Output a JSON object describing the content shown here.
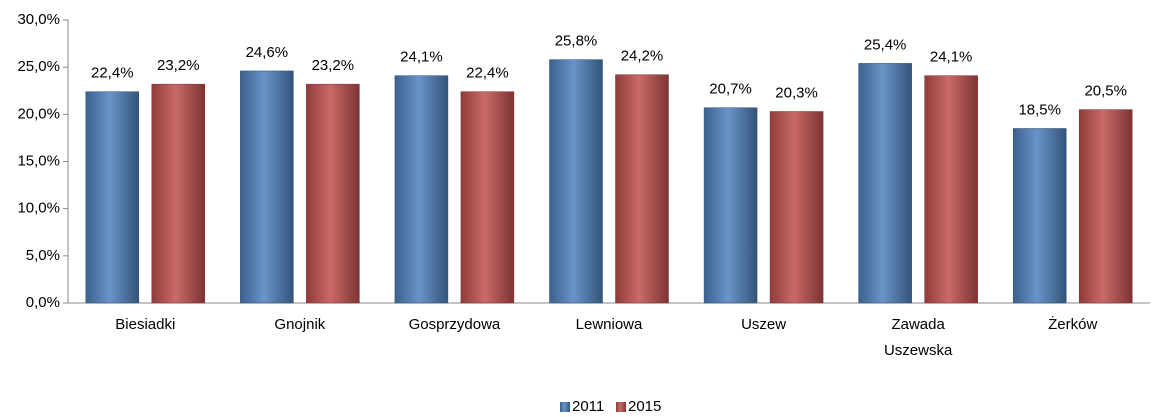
{
  "chart_data": {
    "type": "bar",
    "categories": [
      "Biesiadki",
      "Gnojnik",
      "Gosprzydowa",
      "Lewniowa",
      "Uszew",
      "Zawada Uszewska",
      "Żerków"
    ],
    "series": [
      {
        "name": "2011",
        "color": "#4f81bd",
        "values": [
          22.4,
          24.6,
          24.1,
          25.8,
          20.7,
          25.4,
          18.5
        ],
        "value_labels": [
          "22,4%",
          "24,6%",
          "24,1%",
          "25,8%",
          "20,7%",
          "25,4%",
          "18,5%"
        ]
      },
      {
        "name": "2015",
        "color": "#c0504d",
        "values": [
          23.2,
          23.2,
          22.4,
          24.2,
          20.3,
          24.1,
          20.5
        ],
        "value_labels": [
          "23,2%",
          "23,2%",
          "22,4%",
          "24,2%",
          "20,3%",
          "24,1%",
          "20,5%"
        ]
      }
    ],
    "ylim": [
      0,
      30
    ],
    "yticks": [
      {
        "value": 0,
        "label": "0,0%"
      },
      {
        "value": 5,
        "label": "5,0%"
      },
      {
        "value": 10,
        "label": "10,0%"
      },
      {
        "value": 15,
        "label": "15,0%"
      },
      {
        "value": 20,
        "label": "20,0%"
      },
      {
        "value": 25,
        "label": "25,0%"
      },
      {
        "value": 30,
        "label": "30,0%"
      }
    ],
    "legend": "bottom"
  }
}
